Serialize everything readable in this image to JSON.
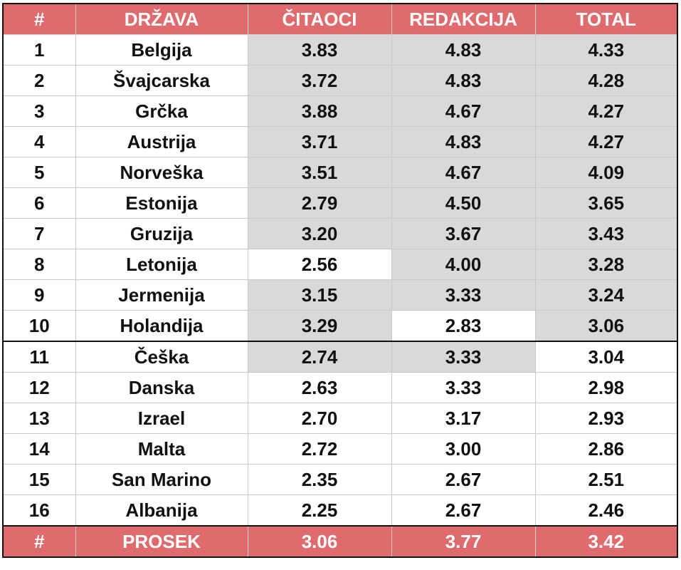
{
  "header": {
    "num": "#",
    "country": "DRŽAVA",
    "readers": "ČITAOCI",
    "editorial": "REDAKCIJA",
    "total": "TOTAL"
  },
  "rows": [
    {
      "num": "1",
      "country": "Belgija",
      "readers": "3.83",
      "editorial": "4.83",
      "total": "4.33"
    },
    {
      "num": "2",
      "country": "Švajcarska",
      "readers": "3.72",
      "editorial": "4.83",
      "total": "4.28"
    },
    {
      "num": "3",
      "country": "Grčka",
      "readers": "3.88",
      "editorial": "4.67",
      "total": "4.27"
    },
    {
      "num": "4",
      "country": "Austrija",
      "readers": "3.71",
      "editorial": "4.83",
      "total": "4.27"
    },
    {
      "num": "5",
      "country": "Norveška",
      "readers": "3.51",
      "editorial": "4.67",
      "total": "4.09"
    },
    {
      "num": "6",
      "country": "Estonija",
      "readers": "2.79",
      "editorial": "4.50",
      "total": "3.65"
    },
    {
      "num": "7",
      "country": "Gruzija",
      "readers": "3.20",
      "editorial": "3.67",
      "total": "3.43"
    },
    {
      "num": "8",
      "country": "Letonija",
      "readers": "2.56",
      "editorial": "4.00",
      "total": "3.28"
    },
    {
      "num": "9",
      "country": "Jermenija",
      "readers": "3.15",
      "editorial": "3.33",
      "total": "3.24"
    },
    {
      "num": "10",
      "country": "Holandija",
      "readers": "3.29",
      "editorial": "2.83",
      "total": "3.06"
    },
    {
      "num": "11",
      "country": "Češka",
      "readers": "2.74",
      "editorial": "3.33",
      "total": "3.04"
    },
    {
      "num": "12",
      "country": "Danska",
      "readers": "2.63",
      "editorial": "3.33",
      "total": "2.98"
    },
    {
      "num": "13",
      "country": "Izrael",
      "readers": "2.70",
      "editorial": "3.17",
      "total": "2.93"
    },
    {
      "num": "14",
      "country": "Malta",
      "readers": "2.72",
      "editorial": "3.00",
      "total": "2.86"
    },
    {
      "num": "15",
      "country": "San Marino",
      "readers": "2.35",
      "editorial": "2.67",
      "total": "2.51"
    },
    {
      "num": "16",
      "country": "Albanija",
      "readers": "2.25",
      "editorial": "2.67",
      "total": "2.46"
    }
  ],
  "footer": {
    "num": "#",
    "label": "PROSEK",
    "readers": "3.06",
    "editorial": "3.77",
    "total": "3.42"
  },
  "colors": {
    "header_bg": "#e06b6e",
    "header_text": "#ffffff",
    "highlight_bg": "#d9d9d9"
  }
}
